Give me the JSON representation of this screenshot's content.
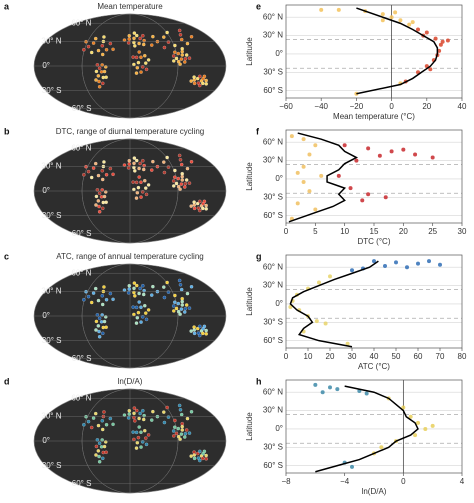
{
  "panels": [
    {
      "label": "a",
      "title": "Mean temperature",
      "lat_labels": [
        {
          "value": 60,
          "label": "60° N"
        },
        {
          "value": 30,
          "label": "30° N"
        },
        {
          "value": 0,
          "label": "0°"
        },
        {
          "value": -30,
          "label": "30° S"
        },
        {
          "value": -60,
          "label": "60° S"
        }
      ]
    },
    {
      "label": "b",
      "title": "DTC, range of diurnal temperature cycling",
      "lat_labels": [
        {
          "value": 60,
          "label": "60° N"
        },
        {
          "value": 30,
          "label": "30° N"
        },
        {
          "value": 0,
          "label": "0°"
        },
        {
          "value": -30,
          "label": "30° S"
        },
        {
          "value": -60,
          "label": "60° S"
        }
      ]
    },
    {
      "label": "c",
      "title": "ATC, range of annual temperature cycling",
      "lat_labels": [
        {
          "value": 60,
          "label": "60° N"
        },
        {
          "value": 30,
          "label": "30° N"
        },
        {
          "value": 0,
          "label": "0°"
        },
        {
          "value": -30,
          "label": "30° S"
        },
        {
          "value": -60,
          "label": "60° S"
        }
      ]
    },
    {
      "label": "d",
      "title": "ln(D/A)",
      "lat_labels": [
        {
          "value": 60,
          "label": "60° N"
        },
        {
          "value": 30,
          "label": "30° N"
        },
        {
          "value": 0,
          "label": "0°"
        },
        {
          "value": -30,
          "label": "30° S"
        },
        {
          "value": -60,
          "label": "60° S"
        }
      ]
    }
  ],
  "chart_data": [
    {
      "type": "scatter",
      "panel": "e",
      "xlabel": "Mean temperature (°C)",
      "ylabel": "Latitude",
      "xlim": [
        -60,
        40
      ],
      "xticks": [
        {
          "value": -60,
          "label": "−60"
        },
        {
          "value": -40,
          "label": "−40"
        },
        {
          "value": -20,
          "label": "−20"
        },
        0,
        20,
        40
      ],
      "ylim": [
        -72,
        80
      ],
      "yticks": [
        {
          "value": 60,
          "label": "60° N"
        },
        {
          "value": 30,
          "label": "30° N"
        },
        {
          "value": 0,
          "label": "0°"
        },
        {
          "value": -30,
          "label": "30° S"
        },
        {
          "value": -60,
          "label": "60° S"
        }
      ],
      "grid": true,
      "dashed_lines": [
        23.4,
        -23.4
      ],
      "vline": 0,
      "series": [
        {
          "style": "points",
          "color": "#f3c25a",
          "x": [
            -30,
            -15,
            -5,
            0,
            5,
            -40,
            -5,
            2,
            10,
            12,
            -20,
            5
          ],
          "values": [
            72,
            70,
            65,
            60,
            55,
            72,
            55,
            68,
            48,
            52,
            -65,
            -48
          ]
        },
        {
          "style": "points",
          "color": "#d9452b",
          "x": [
            15,
            20,
            25,
            28,
            27,
            26,
            24,
            20,
            15,
            18,
            29,
            22,
            8,
            32
          ],
          "values": [
            40,
            35,
            25,
            15,
            5,
            -2,
            -10,
            -20,
            -30,
            30,
            20,
            -25,
            -45,
            22
          ]
        },
        {
          "style": "line",
          "color": "#000000",
          "x": [
            -20,
            -5,
            5,
            12,
            18,
            24,
            26,
            26,
            25,
            22,
            17,
            12,
            5,
            -20
          ],
          "values": [
            75,
            60,
            50,
            40,
            30,
            20,
            10,
            0,
            -10,
            -20,
            -30,
            -40,
            -50,
            -65
          ]
        }
      ]
    },
    {
      "type": "scatter",
      "panel": "f",
      "xlabel": "DTC (°C)",
      "ylabel": "Latitude",
      "xlim": [
        0,
        30
      ],
      "xticks": [
        0,
        5,
        10,
        15,
        20,
        25,
        30
      ],
      "ylim": [
        -72,
        80
      ],
      "yticks": [
        {
          "value": 60,
          "label": "60° N"
        },
        {
          "value": 30,
          "label": "30° N"
        },
        {
          "value": 0,
          "label": "0°"
        },
        {
          "value": -30,
          "label": "30° S"
        },
        {
          "value": -60,
          "label": "60° S"
        }
      ],
      "grid": true,
      "dashed_lines": [
        23.4,
        -23.4
      ],
      "series": [
        {
          "style": "points",
          "color": "#f0c060",
          "x": [
            1,
            3,
            5,
            4,
            2,
            6,
            3,
            4,
            2,
            5,
            1,
            3
          ],
          "values": [
            70,
            65,
            55,
            40,
            10,
            5,
            -5,
            -20,
            -40,
            -50,
            -65,
            20
          ]
        },
        {
          "style": "points",
          "color": "#c8282d",
          "x": [
            10,
            14,
            18,
            22,
            25,
            12,
            16,
            20,
            11,
            14,
            17,
            9,
            13
          ],
          "values": [
            55,
            50,
            45,
            40,
            35,
            30,
            38,
            48,
            -15,
            -25,
            -30,
            5,
            -35
          ]
        },
        {
          "style": "line",
          "color": "#000000",
          "x": [
            2,
            6,
            9,
            10,
            12,
            10,
            9,
            7,
            7,
            10,
            9,
            10,
            8,
            5,
            0.5
          ],
          "values": [
            75,
            65,
            55,
            45,
            35,
            25,
            15,
            5,
            -5,
            -15,
            -25,
            -35,
            -45,
            -55,
            -70
          ]
        }
      ]
    },
    {
      "type": "scatter",
      "panel": "g",
      "xlabel": "ATC (°C)",
      "ylabel": "Latitude",
      "xlim": [
        0,
        80
      ],
      "xticks": [
        0,
        10,
        20,
        30,
        40,
        50,
        60,
        70,
        80
      ],
      "ylim": [
        -72,
        80
      ],
      "yticks": [
        {
          "value": 60,
          "label": "60° N"
        },
        {
          "value": 30,
          "label": "30° N"
        },
        {
          "value": 0,
          "label": "0°"
        },
        {
          "value": -30,
          "label": "30° S"
        },
        {
          "value": -60,
          "label": "60° S"
        }
      ],
      "grid": true,
      "dashed_lines": [
        23.4,
        -23.4
      ],
      "series": [
        {
          "style": "points",
          "color": "#2f6db5",
          "x": [
            40,
            50,
            60,
            70,
            55,
            45,
            35,
            65,
            30
          ],
          "values": [
            70,
            68,
            66,
            64,
            60,
            62,
            58,
            70,
            55
          ]
        },
        {
          "style": "points",
          "color": "#e7d36a",
          "x": [
            20,
            15,
            10,
            5,
            3,
            2,
            6,
            10,
            14,
            18,
            8,
            28
          ],
          "values": [
            45,
            35,
            25,
            15,
            5,
            -5,
            -10,
            -20,
            -28,
            -32,
            -45,
            -65
          ]
        },
        {
          "style": "line",
          "color": "#000000",
          "x": [
            42,
            38,
            30,
            22,
            15,
            8,
            3,
            2,
            5,
            10,
            12,
            8,
            6,
            15,
            30
          ],
          "values": [
            70,
            60,
            50,
            40,
            30,
            20,
            10,
            0,
            -10,
            -20,
            -30,
            -40,
            -50,
            -60,
            -70
          ]
        }
      ]
    },
    {
      "type": "scatter",
      "panel": "h",
      "xlabel": "ln(D/A)",
      "ylabel": "Latitude",
      "xlim": [
        -8,
        4
      ],
      "xticks": [
        {
          "value": -8,
          "label": "−8"
        },
        {
          "value": -4,
          "label": "−4"
        },
        0,
        4
      ],
      "ylim": [
        -72,
        80
      ],
      "yticks": [
        {
          "value": 60,
          "label": "60° N"
        },
        {
          "value": 30,
          "label": "30° N"
        },
        {
          "value": 0,
          "label": "0°"
        },
        {
          "value": -30,
          "label": "30° S"
        },
        {
          "value": -60,
          "label": "60° S"
        }
      ],
      "grid": true,
      "dashed_lines": [
        23.4,
        -23.4
      ],
      "vline": 0,
      "series": [
        {
          "style": "points",
          "color": "#3d8aa8",
          "x": [
            -6,
            -5,
            -4.5,
            -3,
            -2.5,
            -5.5,
            -4,
            -3.5
          ],
          "values": [
            72,
            68,
            65,
            62,
            58,
            60,
            -55,
            -62
          ]
        },
        {
          "style": "points",
          "color": "#e8cf5a",
          "x": [
            -1,
            0,
            0.5,
            1,
            1.5,
            0.8,
            -0.5,
            -1.5,
            -2,
            2
          ],
          "values": [
            50,
            35,
            20,
            10,
            0,
            -10,
            -20,
            -30,
            -40,
            5
          ]
        },
        {
          "style": "line",
          "color": "#000000",
          "x": [
            -4,
            -2,
            -1,
            -0.5,
            0,
            0.2,
            0.8,
            1,
            0.5,
            -0.5,
            -1,
            -2,
            -3,
            -4.5,
            -6
          ],
          "values": [
            70,
            60,
            50,
            40,
            30,
            20,
            10,
            0,
            -10,
            -20,
            -30,
            -40,
            -50,
            -60,
            -70
          ]
        }
      ]
    }
  ]
}
